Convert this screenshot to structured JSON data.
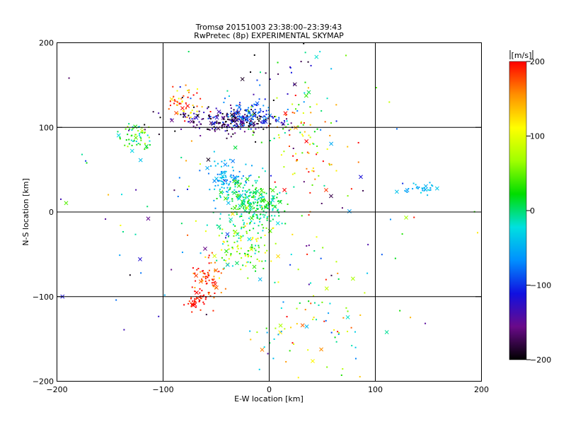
{
  "chart_data": {
    "type": "scatter",
    "title": "Tromsø 20151003 23:38:00–23:39:43",
    "subtitle": "RwPretec (8p) EXPERIMENTAL SKYMAP",
    "xlabel": "E-W location [km]",
    "ylabel": "N-S location [km]",
    "xlim": [
      -200,
      200
    ],
    "ylim": [
      -200,
      200
    ],
    "xticks": [
      -200,
      -100,
      0,
      100,
      200
    ],
    "yticks": [
      -200,
      -100,
      0,
      100,
      200
    ],
    "grid_lines_x": [
      -100,
      0,
      100
    ],
    "grid_lines_y": [
      -100,
      0,
      100
    ],
    "colorbar": {
      "unit": "[m/s]",
      "min": -200,
      "max": 200,
      "ticks": [
        200,
        100,
        0,
        -100,
        -200
      ],
      "colors": [
        "#000000",
        "#6a0a8a",
        "#1010e0",
        "#0090ff",
        "#00e0e0",
        "#00dd00",
        "#a0ff00",
        "#ffff00",
        "#ff9000",
        "#ff0000"
      ]
    },
    "markers": [
      "dot",
      "x"
    ],
    "clusters": [
      {
        "x": -40,
        "y": 108,
        "sx": 28,
        "sy": 7,
        "n": 240,
        "v": -170,
        "dv": 60
      },
      {
        "x": -20,
        "y": 115,
        "sx": 16,
        "sy": 8,
        "n": 90,
        "v": -90,
        "dv": 30
      },
      {
        "x": -80,
        "y": 128,
        "sx": 10,
        "sy": 10,
        "n": 50,
        "v": 150,
        "dv": 60
      },
      {
        "x": -125,
        "y": 88,
        "sx": 8,
        "sy": 9,
        "n": 55,
        "v": 20,
        "dv": 60
      },
      {
        "x": -40,
        "y": 40,
        "sx": 9,
        "sy": 12,
        "n": 100,
        "v": -55,
        "dv": 25
      },
      {
        "x": -15,
        "y": 10,
        "sx": 15,
        "sy": 12,
        "n": 240,
        "v": 5,
        "dv": 40
      },
      {
        "x": -25,
        "y": -40,
        "sx": 16,
        "sy": 16,
        "n": 130,
        "v": 50,
        "dv": 80
      },
      {
        "x": -55,
        "y": -80,
        "sx": 8,
        "sy": 12,
        "n": 70,
        "v": 180,
        "dv": 35
      },
      {
        "x": -68,
        "y": -105,
        "sx": 5,
        "sy": 5,
        "n": 40,
        "v": 200,
        "dv": 20
      },
      {
        "x": 145,
        "y": 28,
        "sx": 7,
        "sy": 4,
        "n": 30,
        "v": -40,
        "dv": 25
      },
      {
        "x": 30,
        "y": 80,
        "sx": 20,
        "sy": 30,
        "n": 80,
        "v": 110,
        "dv": 120
      },
      {
        "x": 20,
        "y": 150,
        "sx": 30,
        "sy": 25,
        "n": 50,
        "v": -60,
        "dv": 150
      },
      {
        "x": 30,
        "y": -130,
        "sx": 30,
        "sy": 35,
        "n": 80,
        "v": 60,
        "dv": 150
      },
      {
        "x": 0,
        "y": 0,
        "sx": 100,
        "sy": 100,
        "n": 140,
        "v": 0,
        "dv": 200
      }
    ]
  }
}
